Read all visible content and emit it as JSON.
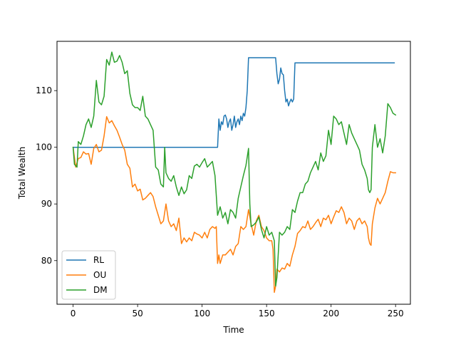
{
  "chart_data": {
    "type": "line",
    "title": "",
    "xlabel": "Time",
    "ylabel": "Total Wealth",
    "xlim": [
      -12.5,
      261.5
    ],
    "ylim": [
      72.3,
      118.7
    ],
    "xticks": [
      0,
      50,
      100,
      150,
      200,
      250
    ],
    "yticks": [
      80,
      90,
      100,
      110
    ],
    "grid": false,
    "legend": "lower-left",
    "series": [
      {
        "name": "RL",
        "color": "#1f77b4",
        "points": [
          [
            0,
            100
          ],
          [
            112,
            100
          ],
          [
            113,
            105
          ],
          [
            114,
            103
          ],
          [
            115,
            104.5
          ],
          [
            116,
            104
          ],
          [
            117,
            105.5
          ],
          [
            118,
            105.7
          ],
          [
            119,
            105
          ],
          [
            120,
            103.5
          ],
          [
            121,
            104.5
          ],
          [
            122,
            105
          ],
          [
            123,
            103
          ],
          [
            124,
            104
          ],
          [
            125,
            105.5
          ],
          [
            126,
            103.5
          ],
          [
            127,
            104.5
          ],
          [
            128,
            105
          ],
          [
            129,
            104
          ],
          [
            130,
            105.5
          ],
          [
            131,
            104.7
          ],
          [
            132,
            106
          ],
          [
            133,
            105.5
          ],
          [
            134,
            107
          ],
          [
            135,
            110
          ],
          [
            136,
            115.8
          ],
          [
            157,
            115.8
          ],
          [
            158,
            113
          ],
          [
            159,
            111.2
          ],
          [
            160,
            112
          ],
          [
            161,
            114
          ],
          [
            162,
            113
          ],
          [
            163,
            112.8
          ],
          [
            164,
            110
          ],
          [
            165,
            108
          ],
          [
            166,
            108.5
          ],
          [
            167,
            107.3
          ],
          [
            168,
            108
          ],
          [
            169,
            108.5
          ],
          [
            170,
            108
          ],
          [
            171,
            108.5
          ],
          [
            172,
            114.9
          ],
          [
            249,
            114.9
          ]
        ]
      },
      {
        "name": "OU",
        "color": "#ff7f0e",
        "points": [
          [
            0,
            100
          ],
          [
            2,
            96.5
          ],
          [
            4,
            98
          ],
          [
            6,
            98.2
          ],
          [
            8,
            99.2
          ],
          [
            10,
            98.8
          ],
          [
            12,
            98.9
          ],
          [
            14,
            97
          ],
          [
            16,
            99.8
          ],
          [
            18,
            100.5
          ],
          [
            20,
            99.2
          ],
          [
            22,
            99.5
          ],
          [
            24,
            102
          ],
          [
            26,
            105.4
          ],
          [
            28,
            104.3
          ],
          [
            30,
            104.7
          ],
          [
            32,
            103.8
          ],
          [
            34,
            103
          ],
          [
            36,
            101.8
          ],
          [
            38,
            100.5
          ],
          [
            40,
            99.5
          ],
          [
            42,
            97
          ],
          [
            44,
            96.3
          ],
          [
            46,
            93
          ],
          [
            48,
            93.5
          ],
          [
            50,
            92.3
          ],
          [
            52,
            92.6
          ],
          [
            54,
            90.7
          ],
          [
            56,
            91
          ],
          [
            58,
            91.5
          ],
          [
            60,
            92
          ],
          [
            62,
            91.3
          ],
          [
            64,
            89.5
          ],
          [
            66,
            88
          ],
          [
            68,
            86.5
          ],
          [
            70,
            87
          ],
          [
            72,
            90
          ],
          [
            74,
            87
          ],
          [
            76,
            86
          ],
          [
            78,
            86.5
          ],
          [
            80,
            85.3
          ],
          [
            82,
            87.5
          ],
          [
            84,
            83
          ],
          [
            86,
            84
          ],
          [
            88,
            83.3
          ],
          [
            90,
            84
          ],
          [
            92,
            83.5
          ],
          [
            94,
            85
          ],
          [
            96,
            84.7
          ],
          [
            98,
            84.5
          ],
          [
            100,
            84
          ],
          [
            102,
            85
          ],
          [
            104,
            84
          ],
          [
            106,
            85.5
          ],
          [
            108,
            86
          ],
          [
            110,
            85.7
          ],
          [
            111,
            86
          ],
          [
            112,
            79.5
          ],
          [
            113,
            81
          ],
          [
            114,
            79.5
          ],
          [
            116,
            81
          ],
          [
            118,
            81
          ],
          [
            120,
            81.5
          ],
          [
            122,
            82
          ],
          [
            124,
            81
          ],
          [
            126,
            82.5
          ],
          [
            128,
            83
          ],
          [
            130,
            86
          ],
          [
            132,
            85.5
          ],
          [
            134,
            86
          ],
          [
            136,
            89
          ],
          [
            138,
            86.5
          ],
          [
            140,
            84.5
          ],
          [
            142,
            87
          ],
          [
            144,
            88
          ],
          [
            146,
            86
          ],
          [
            148,
            85.3
          ],
          [
            150,
            84
          ],
          [
            152,
            83.5
          ],
          [
            154,
            83.5
          ],
          [
            155,
            82
          ],
          [
            156,
            74.4
          ],
          [
            157,
            75.5
          ],
          [
            158,
            78.5
          ],
          [
            160,
            78
          ],
          [
            162,
            78.7
          ],
          [
            164,
            78.5
          ],
          [
            166,
            79.5
          ],
          [
            168,
            79
          ],
          [
            170,
            81
          ],
          [
            172,
            82.5
          ],
          [
            174,
            84.8
          ],
          [
            176,
            85.3
          ],
          [
            178,
            86
          ],
          [
            180,
            85.8
          ],
          [
            182,
            87
          ],
          [
            184,
            85.5
          ],
          [
            186,
            86
          ],
          [
            188,
            86.7
          ],
          [
            190,
            87.3
          ],
          [
            192,
            86
          ],
          [
            194,
            87.5
          ],
          [
            196,
            87.2
          ],
          [
            198,
            88
          ],
          [
            200,
            86.5
          ],
          [
            202,
            87.7
          ],
          [
            204,
            88.8
          ],
          [
            206,
            88.5
          ],
          [
            208,
            89.5
          ],
          [
            210,
            88.5
          ],
          [
            212,
            86.5
          ],
          [
            214,
            87.5
          ],
          [
            216,
            87
          ],
          [
            218,
            85.5
          ],
          [
            220,
            87
          ],
          [
            222,
            87.5
          ],
          [
            224,
            86.5
          ],
          [
            226,
            87
          ],
          [
            228,
            86
          ],
          [
            229,
            84
          ],
          [
            230,
            83
          ],
          [
            231,
            82.7
          ],
          [
            232,
            86.5
          ],
          [
            234,
            89.3
          ],
          [
            236,
            91
          ],
          [
            238,
            90
          ],
          [
            240,
            91
          ],
          [
            242,
            92
          ],
          [
            244,
            94
          ],
          [
            246,
            95.7
          ],
          [
            248,
            95.5
          ],
          [
            250,
            95.5
          ]
        ]
      },
      {
        "name": "DM",
        "color": "#2ca02c",
        "points": [
          [
            0,
            100
          ],
          [
            1,
            97
          ],
          [
            3,
            96.5
          ],
          [
            4,
            101
          ],
          [
            6,
            100.5
          ],
          [
            8,
            102
          ],
          [
            10,
            104
          ],
          [
            12,
            105
          ],
          [
            14,
            103.5
          ],
          [
            16,
            105.5
          ],
          [
            18,
            111.8
          ],
          [
            20,
            108
          ],
          [
            22,
            107.5
          ],
          [
            24,
            109
          ],
          [
            26,
            115.5
          ],
          [
            28,
            114.5
          ],
          [
            30,
            116.8
          ],
          [
            32,
            115
          ],
          [
            34,
            115.2
          ],
          [
            36,
            116.2
          ],
          [
            38,
            115
          ],
          [
            40,
            113
          ],
          [
            42,
            113.5
          ],
          [
            44,
            109.5
          ],
          [
            46,
            107.5
          ],
          [
            48,
            107
          ],
          [
            50,
            107
          ],
          [
            52,
            106.5
          ],
          [
            54,
            109
          ],
          [
            56,
            105.5
          ],
          [
            58,
            105
          ],
          [
            60,
            104
          ],
          [
            62,
            103
          ],
          [
            64,
            96.5
          ],
          [
            66,
            96
          ],
          [
            68,
            93.5
          ],
          [
            70,
            93
          ],
          [
            71,
            100
          ],
          [
            72,
            95.5
          ],
          [
            74,
            94.5
          ],
          [
            76,
            94
          ],
          [
            78,
            95
          ],
          [
            80,
            93
          ],
          [
            82,
            91.5
          ],
          [
            84,
            93
          ],
          [
            86,
            91.8
          ],
          [
            88,
            92.5
          ],
          [
            90,
            95
          ],
          [
            92,
            94.5
          ],
          [
            94,
            96.7
          ],
          [
            96,
            97
          ],
          [
            98,
            96.5
          ],
          [
            100,
            97.3
          ],
          [
            102,
            98
          ],
          [
            104,
            96.5
          ],
          [
            106,
            97
          ],
          [
            108,
            97.5
          ],
          [
            110,
            95
          ],
          [
            112,
            88
          ],
          [
            114,
            89.5
          ],
          [
            116,
            87.5
          ],
          [
            118,
            88.5
          ],
          [
            120,
            86.5
          ],
          [
            122,
            89
          ],
          [
            124,
            88.5
          ],
          [
            126,
            87.5
          ],
          [
            128,
            91
          ],
          [
            130,
            93
          ],
          [
            132,
            95
          ],
          [
            134,
            96.8
          ],
          [
            136,
            99.8
          ],
          [
            137,
            90
          ],
          [
            138,
            86
          ],
          [
            140,
            86.3
          ],
          [
            142,
            86.8
          ],
          [
            144,
            87.7
          ],
          [
            146,
            85.5
          ],
          [
            148,
            84
          ],
          [
            150,
            86
          ],
          [
            152,
            84.5
          ],
          [
            154,
            85
          ],
          [
            156,
            83.5
          ],
          [
            157,
            75.5
          ],
          [
            158,
            77
          ],
          [
            160,
            85
          ],
          [
            162,
            84.5
          ],
          [
            164,
            85
          ],
          [
            166,
            86
          ],
          [
            168,
            85.5
          ],
          [
            170,
            89
          ],
          [
            172,
            88.5
          ],
          [
            174,
            90.5
          ],
          [
            176,
            92
          ],
          [
            178,
            92
          ],
          [
            180,
            93.5
          ],
          [
            182,
            94
          ],
          [
            184,
            95.5
          ],
          [
            186,
            96.5
          ],
          [
            188,
            97.5
          ],
          [
            190,
            96
          ],
          [
            192,
            99
          ],
          [
            194,
            97.5
          ],
          [
            196,
            98.5
          ],
          [
            198,
            103
          ],
          [
            200,
            100.5
          ],
          [
            202,
            105.5
          ],
          [
            204,
            105
          ],
          [
            206,
            104
          ],
          [
            208,
            104.5
          ],
          [
            210,
            102.5
          ],
          [
            212,
            100.5
          ],
          [
            214,
            104
          ],
          [
            216,
            102.5
          ],
          [
            218,
            101.5
          ],
          [
            220,
            100.5
          ],
          [
            222,
            99.5
          ],
          [
            224,
            97
          ],
          [
            226,
            96
          ],
          [
            228,
            94.5
          ],
          [
            229,
            92.5
          ],
          [
            230,
            92
          ],
          [
            231,
            92.5
          ],
          [
            232,
            100
          ],
          [
            234,
            104
          ],
          [
            236,
            100
          ],
          [
            238,
            101.5
          ],
          [
            240,
            99
          ],
          [
            242,
            102
          ],
          [
            244,
            107.7
          ],
          [
            246,
            107
          ],
          [
            248,
            106
          ],
          [
            250,
            105.7
          ]
        ]
      }
    ]
  }
}
